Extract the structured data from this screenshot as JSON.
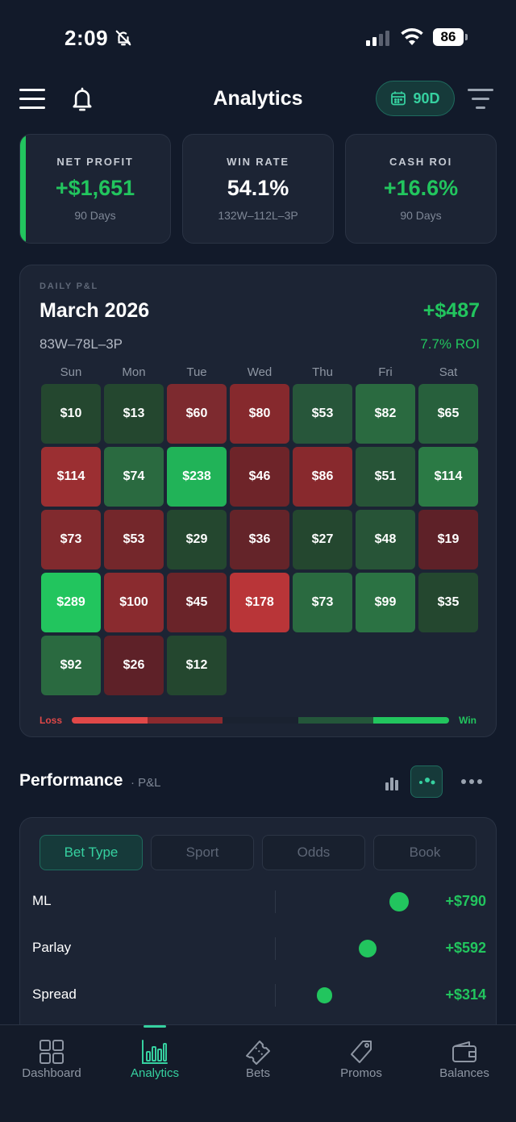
{
  "status_bar": {
    "time": "2:09",
    "battery": "86"
  },
  "header": {
    "title": "Analytics",
    "range_label": "90D"
  },
  "stats": [
    {
      "label": "NET PROFIT",
      "value": "+$1,651",
      "sub": "90 Days"
    },
    {
      "label": "WIN RATE",
      "value": "54.1%",
      "sub": "132W–112L–3P"
    },
    {
      "label": "CASH ROI",
      "value": "+16.6%",
      "sub": "90 Days"
    }
  ],
  "daily_pnl": {
    "kicker": "DAILY P&L",
    "month": "March 2026",
    "total": "+$487",
    "record": "83W–78L–3P",
    "roi": "7.7% ROI",
    "weekdays": [
      "Sun",
      "Mon",
      "Tue",
      "Wed",
      "Thu",
      "Fri",
      "Sat"
    ],
    "days": [
      {
        "label": "$10",
        "color": "#24472f"
      },
      {
        "label": "$13",
        "color": "#24472f"
      },
      {
        "label": "$60",
        "color": "#7d2a2f"
      },
      {
        "label": "$80",
        "color": "#86292d"
      },
      {
        "label": "$53",
        "color": "#27563a"
      },
      {
        "label": "$82",
        "color": "#2a6a40"
      },
      {
        "label": "$65",
        "color": "#27603c"
      },
      {
        "label": "$114",
        "color": "#9b2f32"
      },
      {
        "label": "$74",
        "color": "#2a6a40"
      },
      {
        "label": "$238",
        "color": "#21b358"
      },
      {
        "label": "$46",
        "color": "#6e2429"
      },
      {
        "label": "$86",
        "color": "#88292d"
      },
      {
        "label": "$51",
        "color": "#275437"
      },
      {
        "label": "$114",
        "color": "#2b7a45"
      },
      {
        "label": "$73",
        "color": "#812a2e"
      },
      {
        "label": "$53",
        "color": "#74272b"
      },
      {
        "label": "$29",
        "color": "#24472f"
      },
      {
        "label": "$36",
        "color": "#642429"
      },
      {
        "label": "$27",
        "color": "#24472f"
      },
      {
        "label": "$48",
        "color": "#275437"
      },
      {
        "label": "$19",
        "color": "#5e2128"
      },
      {
        "label": "$289",
        "color": "#22c55e"
      },
      {
        "label": "$100",
        "color": "#8a2b2f"
      },
      {
        "label": "$45",
        "color": "#6a2429"
      },
      {
        "label": "$178",
        "color": "#b93538"
      },
      {
        "label": "$73",
        "color": "#2a6a40"
      },
      {
        "label": "$99",
        "color": "#2b7243"
      },
      {
        "label": "$35",
        "color": "#24472f"
      },
      {
        "label": "$92",
        "color": "#2a6a40"
      },
      {
        "label": "$26",
        "color": "#5e2128"
      },
      {
        "label": "$12",
        "color": "#24472f"
      }
    ],
    "legend_loss": "Loss",
    "legend_win": "Win",
    "legend_colors": [
      "#e04848",
      "#8c2a2e",
      "#1a2230",
      "#24563a",
      "#22c55e"
    ]
  },
  "performance": {
    "title": "Performance",
    "subtitle": "· P&L",
    "segments": [
      "Bet Type",
      "Sport",
      "Odds",
      "Book"
    ],
    "active_segment": 0,
    "rows": [
      {
        "label": "ML",
        "value": "+$790",
        "amount": 790
      },
      {
        "label": "Parlay",
        "value": "+$592",
        "amount": 592
      },
      {
        "label": "Spread",
        "value": "+$314",
        "amount": 314
      }
    ]
  },
  "nav": {
    "tabs": [
      {
        "label": "Dashboard",
        "icon": "grid-icon"
      },
      {
        "label": "Analytics",
        "icon": "bar-chart-icon"
      },
      {
        "label": "Bets",
        "icon": "ticket-icon"
      },
      {
        "label": "Promos",
        "icon": "tag-icon"
      },
      {
        "label": "Balances",
        "icon": "wallet-icon"
      }
    ],
    "active": 1
  }
}
